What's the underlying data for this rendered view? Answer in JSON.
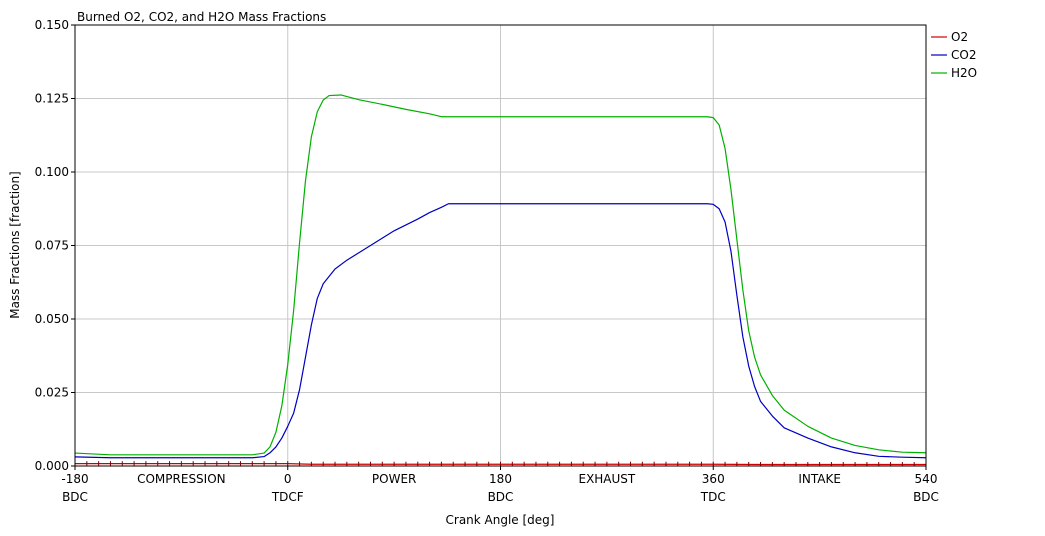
{
  "chart_data": {
    "type": "line",
    "title": "Burned O2, CO2, and H2O Mass Fractions",
    "xlabel": "Crank Angle [deg]",
    "ylabel": "Mass Fractions [fraction]",
    "xlim": [
      -180,
      540
    ],
    "ylim": [
      0,
      0.15
    ],
    "grid": true,
    "legend_position": "right",
    "x_ticks": [
      {
        "value": -180,
        "label": "-180",
        "sublabel": "BDC"
      },
      {
        "value": 0,
        "label": "0",
        "sublabel": "TDCF"
      },
      {
        "value": 180,
        "label": "180",
        "sublabel": "BDC"
      },
      {
        "value": 360,
        "label": "360",
        "sublabel": "TDC"
      },
      {
        "value": 540,
        "label": "540",
        "sublabel": "BDC"
      }
    ],
    "phase_labels": [
      {
        "value": -90,
        "label": "COMPRESSION"
      },
      {
        "value": 90,
        "label": "POWER"
      },
      {
        "value": 270,
        "label": "EXHAUST"
      },
      {
        "value": 450,
        "label": "INTAKE"
      }
    ],
    "y_ticks": [
      {
        "value": 0,
        "label": "0.000"
      },
      {
        "value": 0.025,
        "label": "0.025"
      },
      {
        "value": 0.05,
        "label": "0.050"
      },
      {
        "value": 0.075,
        "label": "0.075"
      },
      {
        "value": 0.1,
        "label": "0.100"
      },
      {
        "value": 0.125,
        "label": "0.125"
      },
      {
        "value": 0.15,
        "label": "0.150"
      }
    ],
    "series": [
      {
        "name": "O2",
        "color": "#d00000",
        "points": [
          [
            -180,
            0.0008
          ],
          [
            0,
            0.0008
          ],
          [
            20,
            0.0006
          ],
          [
            100,
            0.0006
          ],
          [
            130,
            0.0006
          ],
          [
            360,
            0.0006
          ],
          [
            400,
            0.0005
          ],
          [
            540,
            0.0005
          ]
        ]
      },
      {
        "name": "CO2",
        "color": "#0000c0",
        "points": [
          [
            -180,
            0.0031
          ],
          [
            -150,
            0.0028
          ],
          [
            -30,
            0.0028
          ],
          [
            -20,
            0.0032
          ],
          [
            -15,
            0.0045
          ],
          [
            -10,
            0.0065
          ],
          [
            -5,
            0.0095
          ],
          [
            0,
            0.0135
          ],
          [
            5,
            0.018
          ],
          [
            10,
            0.026
          ],
          [
            15,
            0.037
          ],
          [
            20,
            0.048
          ],
          [
            25,
            0.057
          ],
          [
            30,
            0.062
          ],
          [
            40,
            0.067
          ],
          [
            50,
            0.07
          ],
          [
            60,
            0.0725
          ],
          [
            70,
            0.075
          ],
          [
            80,
            0.0775
          ],
          [
            90,
            0.08
          ],
          [
            100,
            0.082
          ],
          [
            110,
            0.084
          ],
          [
            120,
            0.0862
          ],
          [
            130,
            0.088
          ],
          [
            136,
            0.0892
          ],
          [
            180,
            0.0892
          ],
          [
            250,
            0.0892
          ],
          [
            300,
            0.0892
          ],
          [
            345,
            0.0892
          ],
          [
            355,
            0.0892
          ],
          [
            360,
            0.089
          ],
          [
            365,
            0.0875
          ],
          [
            370,
            0.083
          ],
          [
            375,
            0.073
          ],
          [
            380,
            0.058
          ],
          [
            385,
            0.044
          ],
          [
            390,
            0.034
          ],
          [
            395,
            0.027
          ],
          [
            400,
            0.022
          ],
          [
            410,
            0.017
          ],
          [
            420,
            0.013
          ],
          [
            440,
            0.0095
          ],
          [
            460,
            0.0065
          ],
          [
            480,
            0.0045
          ],
          [
            500,
            0.0033
          ],
          [
            520,
            0.003
          ],
          [
            540,
            0.0028
          ]
        ]
      },
      {
        "name": "H2O",
        "color": "#00b000",
        "points": [
          [
            -180,
            0.0044
          ],
          [
            -150,
            0.0038
          ],
          [
            -30,
            0.0038
          ],
          [
            -20,
            0.0044
          ],
          [
            -15,
            0.0065
          ],
          [
            -10,
            0.0115
          ],
          [
            -5,
            0.0205
          ],
          [
            0,
            0.0345
          ],
          [
            5,
            0.053
          ],
          [
            10,
            0.076
          ],
          [
            15,
            0.097
          ],
          [
            20,
            0.112
          ],
          [
            25,
            0.1205
          ],
          [
            30,
            0.1245
          ],
          [
            35,
            0.126
          ],
          [
            45,
            0.1262
          ],
          [
            60,
            0.1246
          ],
          [
            80,
            0.123
          ],
          [
            100,
            0.1213
          ],
          [
            120,
            0.1198
          ],
          [
            130,
            0.1188
          ],
          [
            180,
            0.1188
          ],
          [
            250,
            0.1188
          ],
          [
            300,
            0.1188
          ],
          [
            355,
            0.1188
          ],
          [
            360,
            0.1185
          ],
          [
            365,
            0.116
          ],
          [
            370,
            0.108
          ],
          [
            375,
            0.094
          ],
          [
            380,
            0.077
          ],
          [
            385,
            0.06
          ],
          [
            390,
            0.046
          ],
          [
            395,
            0.037
          ],
          [
            400,
            0.031
          ],
          [
            410,
            0.024
          ],
          [
            420,
            0.019
          ],
          [
            440,
            0.0135
          ],
          [
            460,
            0.0095
          ],
          [
            480,
            0.007
          ],
          [
            500,
            0.0055
          ],
          [
            520,
            0.0047
          ],
          [
            540,
            0.0045
          ]
        ]
      }
    ]
  }
}
